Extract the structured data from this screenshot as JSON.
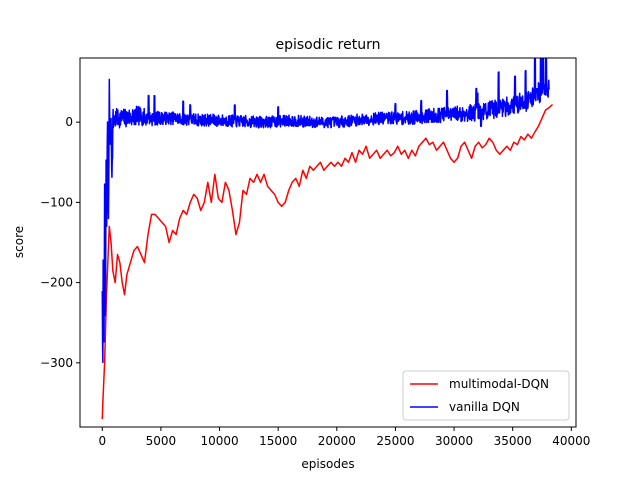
{
  "chart_data": {
    "type": "line",
    "title": "episodic return",
    "xlabel": "episodes",
    "ylabel": "score",
    "xlim": [
      -1900,
      40400
    ],
    "ylim": [
      -380,
      80
    ],
    "xticks": [
      0,
      5000,
      10000,
      15000,
      20000,
      25000,
      30000,
      35000,
      40000
    ],
    "yticks": [
      -300,
      -200,
      -100,
      0
    ],
    "grid": false,
    "legend": "lower-right",
    "series": [
      {
        "name": "multimodal-DQN",
        "color": "#ff0000",
        "points": [
          [
            0,
            -370
          ],
          [
            60,
            -345
          ],
          [
            200,
            -300
          ],
          [
            350,
            -220
          ],
          [
            500,
            -165
          ],
          [
            600,
            -130
          ],
          [
            750,
            -150
          ],
          [
            900,
            -185
          ],
          [
            1100,
            -200
          ],
          [
            1300,
            -165
          ],
          [
            1500,
            -175
          ],
          [
            1700,
            -200
          ],
          [
            1900,
            -215
          ],
          [
            2100,
            -190
          ],
          [
            2400,
            -175
          ],
          [
            2700,
            -160
          ],
          [
            3000,
            -155
          ],
          [
            3300,
            -165
          ],
          [
            3600,
            -175
          ],
          [
            3900,
            -140
          ],
          [
            4200,
            -115
          ],
          [
            4500,
            -115
          ],
          [
            4800,
            -120
          ],
          [
            5100,
            -125
          ],
          [
            5400,
            -130
          ],
          [
            5700,
            -150
          ],
          [
            6000,
            -135
          ],
          [
            6300,
            -140
          ],
          [
            6600,
            -120
          ],
          [
            6900,
            -110
          ],
          [
            7200,
            -115
          ],
          [
            7500,
            -100
          ],
          [
            7800,
            -90
          ],
          [
            8100,
            -95
          ],
          [
            8400,
            -110
          ],
          [
            8700,
            -100
          ],
          [
            9000,
            -75
          ],
          [
            9300,
            -100
          ],
          [
            9600,
            -65
          ],
          [
            9900,
            -95
          ],
          [
            10200,
            -100
          ],
          [
            10500,
            -75
          ],
          [
            10800,
            -85
          ],
          [
            11100,
            -110
          ],
          [
            11400,
            -140
          ],
          [
            11700,
            -125
          ],
          [
            12000,
            -85
          ],
          [
            12300,
            -90
          ],
          [
            12600,
            -70
          ],
          [
            12900,
            -75
          ],
          [
            13200,
            -65
          ],
          [
            13500,
            -75
          ],
          [
            13800,
            -65
          ],
          [
            14100,
            -80
          ],
          [
            14400,
            -85
          ],
          [
            14700,
            -90
          ],
          [
            15000,
            -100
          ],
          [
            15300,
            -105
          ],
          [
            15600,
            -100
          ],
          [
            15900,
            -85
          ],
          [
            16200,
            -75
          ],
          [
            16500,
            -70
          ],
          [
            16800,
            -80
          ],
          [
            17100,
            -60
          ],
          [
            17400,
            -70
          ],
          [
            17700,
            -55
          ],
          [
            18000,
            -60
          ],
          [
            18300,
            -55
          ],
          [
            18600,
            -50
          ],
          [
            18900,
            -60
          ],
          [
            19200,
            -55
          ],
          [
            19500,
            -50
          ],
          [
            19800,
            -55
          ],
          [
            20100,
            -50
          ],
          [
            20400,
            -55
          ],
          [
            20700,
            -45
          ],
          [
            21000,
            -50
          ],
          [
            21300,
            -38
          ],
          [
            21600,
            -50
          ],
          [
            21900,
            -35
          ],
          [
            22200,
            -40
          ],
          [
            22500,
            -30
          ],
          [
            22800,
            -45
          ],
          [
            23100,
            -40
          ],
          [
            23400,
            -35
          ],
          [
            23700,
            -45
          ],
          [
            24000,
            -40
          ],
          [
            24300,
            -35
          ],
          [
            24600,
            -42
          ],
          [
            24900,
            -38
          ],
          [
            25200,
            -30
          ],
          [
            25500,
            -40
          ],
          [
            25800,
            -35
          ],
          [
            26100,
            -45
          ],
          [
            26400,
            -35
          ],
          [
            26700,
            -42
          ],
          [
            27000,
            -30
          ],
          [
            27300,
            -25
          ],
          [
            27600,
            -20
          ],
          [
            27900,
            -28
          ],
          [
            28200,
            -25
          ],
          [
            28500,
            -35
          ],
          [
            28800,
            -30
          ],
          [
            29100,
            -25
          ],
          [
            29400,
            -35
          ],
          [
            29700,
            -45
          ],
          [
            30000,
            -50
          ],
          [
            30300,
            -45
          ],
          [
            30600,
            -30
          ],
          [
            30900,
            -25
          ],
          [
            31200,
            -35
          ],
          [
            31500,
            -45
          ],
          [
            31800,
            -30
          ],
          [
            32100,
            -25
          ],
          [
            32400,
            -32
          ],
          [
            32700,
            -28
          ],
          [
            33000,
            -20
          ],
          [
            33300,
            -25
          ],
          [
            33600,
            -35
          ],
          [
            33900,
            -40
          ],
          [
            34200,
            -35
          ],
          [
            34500,
            -30
          ],
          [
            34800,
            -35
          ],
          [
            35100,
            -25
          ],
          [
            35400,
            -28
          ],
          [
            35700,
            -18
          ],
          [
            36000,
            -22
          ],
          [
            36300,
            -15
          ],
          [
            36600,
            -20
          ],
          [
            36900,
            -12
          ],
          [
            37200,
            -5
          ],
          [
            37500,
            5
          ],
          [
            37800,
            15
          ],
          [
            38100,
            18
          ],
          [
            38400,
            22
          ]
        ]
      },
      {
        "name": "vanilla DQN",
        "color": "#0000ff",
        "generator": {
          "x_start": 0,
          "x_end": 38100,
          "step": 25,
          "seed": 7,
          "base": [
            [
              0,
              -200
            ],
            [
              40,
              -350
            ],
            [
              90,
              -120
            ],
            [
              140,
              -310
            ],
            [
              200,
              -60
            ],
            [
              260,
              -300
            ],
            [
              320,
              -40
            ],
            [
              380,
              -150
            ],
            [
              440,
              20
            ],
            [
              520,
              -130
            ],
            [
              600,
              40
            ],
            [
              680,
              -20
            ],
            [
              760,
              10
            ],
            [
              830,
              -80
            ],
            [
              900,
              0
            ],
            [
              1200,
              5
            ],
            [
              2000,
              5
            ],
            [
              3000,
              8
            ],
            [
              4000,
              5
            ],
            [
              6000,
              5
            ],
            [
              8000,
              3
            ],
            [
              10000,
              2
            ],
            [
              12000,
              1
            ],
            [
              14000,
              0
            ],
            [
              16000,
              2
            ],
            [
              18000,
              0
            ],
            [
              20000,
              0
            ],
            [
              22000,
              3
            ],
            [
              24000,
              5
            ],
            [
              26000,
              5
            ],
            [
              28000,
              8
            ],
            [
              30000,
              10
            ],
            [
              32000,
              12
            ],
            [
              34000,
              18
            ],
            [
              36000,
              25
            ],
            [
              37500,
              40
            ],
            [
              38100,
              45
            ]
          ],
          "noise": [
            [
              0,
              20
            ],
            [
              900,
              20
            ],
            [
              1000,
              12
            ],
            [
              3000,
              12
            ],
            [
              5000,
              8
            ],
            [
              20000,
              7
            ],
            [
              25000,
              8
            ],
            [
              30000,
              10
            ],
            [
              34000,
              12
            ],
            [
              38100,
              14
            ]
          ],
          "spikes": [
            [
              3950,
              28
            ],
            [
              4450,
              28
            ],
            [
              6900,
              22
            ],
            [
              7500,
              18
            ],
            [
              11300,
              20
            ],
            [
              15000,
              18
            ],
            [
              25000,
              18
            ],
            [
              27200,
              20
            ],
            [
              29400,
              30
            ],
            [
              31900,
              30
            ],
            [
              32000,
              24
            ],
            [
              32300,
              -18
            ],
            [
              33800,
              45
            ],
            [
              35200,
              35
            ],
            [
              36100,
              38
            ],
            [
              36900,
              60
            ],
            [
              37400,
              55
            ],
            [
              37600,
              58
            ],
            [
              37850,
              48
            ]
          ]
        }
      }
    ]
  }
}
